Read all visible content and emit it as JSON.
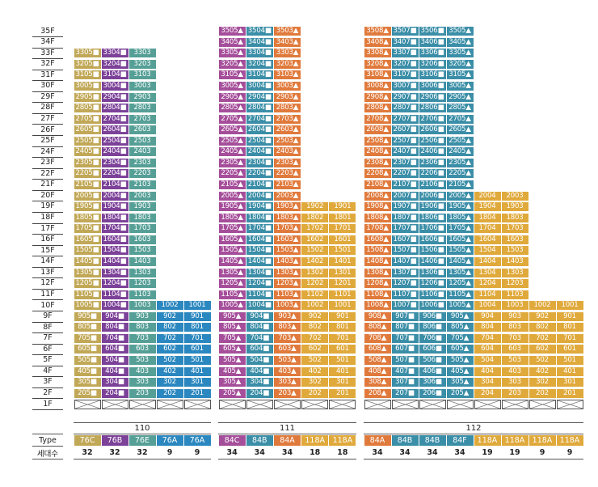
{
  "floor_labels": [
    "35F",
    "34F",
    "33F",
    "32F",
    "31F",
    "30F",
    "29F",
    "28F",
    "27F",
    "26F",
    "25F",
    "24F",
    "23F",
    "22F",
    "21F",
    "20F",
    "19F",
    "18F",
    "17F",
    "16F",
    "15F",
    "14F",
    "13F",
    "12F",
    "11F",
    "10F",
    "9F",
    "8F",
    "7F",
    "6F",
    "5F",
    "4F",
    "3F",
    "2F",
    "1F"
  ],
  "row_labels": {
    "type": "Type",
    "count": "세대수"
  },
  "colors": {
    "olive": "#c1a857",
    "purple": "#7c4198",
    "teal": "#559f96",
    "blue": "#2b87bf",
    "orange": "#e07a3c",
    "gold": "#e0a93b",
    "steelteal": "#3b8ea7",
    "magenta": "#a54e9a"
  },
  "buildings": [
    {
      "name": "110",
      "columns": [
        {
          "line": "05",
          "type": "76C",
          "count": "32",
          "top_floor": 33,
          "marker": "■",
          "color": "olive"
        },
        {
          "line": "04",
          "type": "76B",
          "count": "32",
          "top_floor": 33,
          "marker": "■",
          "color": "purple"
        },
        {
          "line": "03",
          "type": "76E",
          "count": "32",
          "top_floor": 33,
          "marker": "",
          "color": "teal"
        },
        {
          "line": "02",
          "type": "76A",
          "count": "9",
          "top_floor": 10,
          "marker": "",
          "color": "blue"
        },
        {
          "line": "01",
          "type": "76A",
          "count": "9",
          "top_floor": 10,
          "marker": "",
          "color": "blue"
        }
      ]
    },
    {
      "name": "111",
      "columns": [
        {
          "line": "05",
          "type": "84C",
          "count": "34",
          "top_floor": 35,
          "marker": "▲",
          "color": "magenta"
        },
        {
          "line": "04",
          "type": "84B",
          "count": "34",
          "top_floor": 35,
          "marker": "■",
          "color": "steelteal"
        },
        {
          "line": "03",
          "type": "84A",
          "count": "34",
          "top_floor": 35,
          "marker": "▲",
          "color": "orange"
        },
        {
          "line": "02",
          "type": "118A",
          "count": "18",
          "top_floor": 19,
          "marker": "",
          "color": "gold"
        },
        {
          "line": "01",
          "type": "118A",
          "count": "18",
          "top_floor": 19,
          "marker": "",
          "color": "gold"
        }
      ]
    },
    {
      "name": "112",
      "columns": [
        {
          "line": "08",
          "type": "84A",
          "count": "34",
          "top_floor": 35,
          "marker": "▲",
          "color": "orange"
        },
        {
          "line": "07",
          "type": "84B",
          "count": "34",
          "top_floor": 35,
          "marker": "■",
          "color": "steelteal"
        },
        {
          "line": "06",
          "type": "84B",
          "count": "34",
          "top_floor": 35,
          "marker": "■",
          "color": "steelteal"
        },
        {
          "line": "05",
          "type": "84F",
          "count": "34",
          "top_floor": 35,
          "marker": "▲",
          "color": "steelteal"
        },
        {
          "line": "04",
          "type": "118A",
          "count": "19",
          "top_floor": 20,
          "marker": "",
          "color": "gold"
        },
        {
          "line": "03",
          "type": "118A",
          "count": "19",
          "top_floor": 20,
          "marker": "",
          "color": "gold"
        },
        {
          "line": "02",
          "type": "118A",
          "count": "9",
          "top_floor": 10,
          "marker": "",
          "color": "gold"
        },
        {
          "line": "01",
          "type": "118A",
          "count": "9",
          "top_floor": 10,
          "marker": "",
          "color": "gold"
        }
      ]
    }
  ]
}
